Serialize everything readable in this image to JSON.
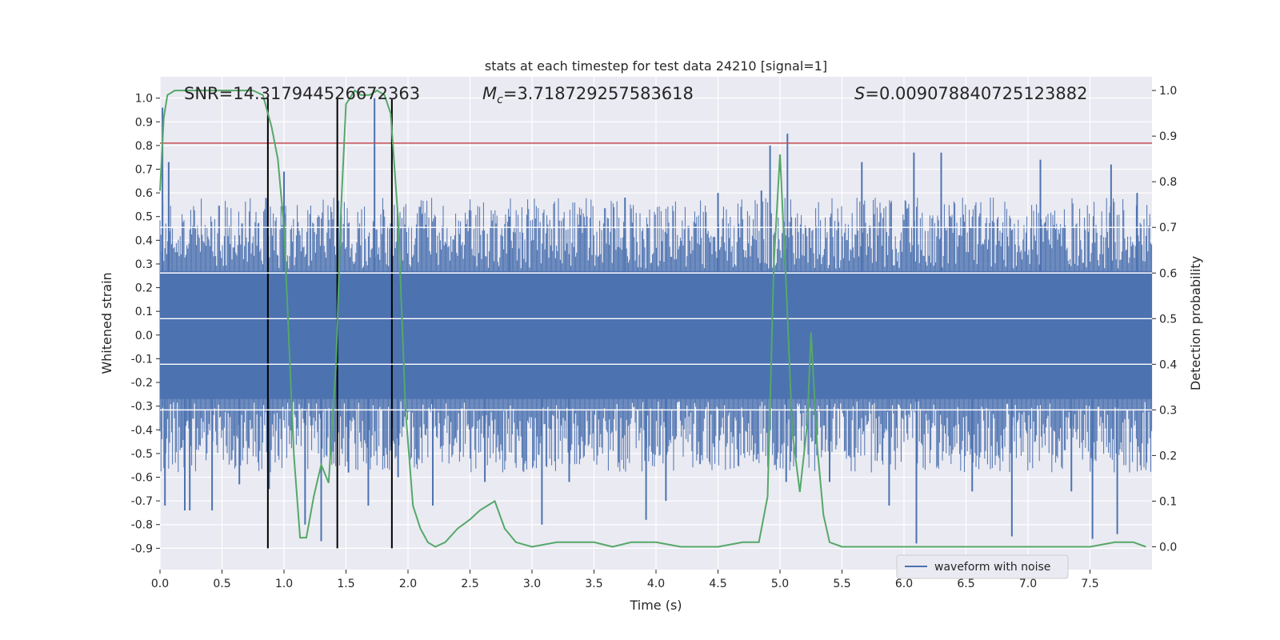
{
  "chart_data": {
    "type": "line",
    "title": "stats at each timestep for test data 24210 [signal=1]",
    "xlabel": "Time (s)",
    "ylabel_left": "Whitened strain",
    "ylabel_right": "Detection probability",
    "xlim": [
      0.0,
      8.0
    ],
    "ylim_left": [
      -0.99,
      1.09
    ],
    "ylim_right": [
      -0.05,
      1.03
    ],
    "x_ticks": [
      "0.0",
      "0.5",
      "1.0",
      "1.5",
      "2.0",
      "2.5",
      "3.0",
      "3.5",
      "4.0",
      "4.5",
      "5.0",
      "5.5",
      "6.0",
      "6.5",
      "7.0",
      "7.5"
    ],
    "y_left_ticks": [
      "1.0",
      "0.9",
      "0.8",
      "0.7",
      "0.6",
      "0.5",
      "0.4",
      "0.3",
      "0.2",
      "0.1",
      "0.0",
      "-0.1",
      "-0.2",
      "-0.3",
      "-0.4",
      "-0.5",
      "-0.6",
      "-0.7",
      "-0.8",
      "-0.9"
    ],
    "y_right_ticks": [
      "1.0",
      "0.9",
      "0.8",
      "0.7",
      "0.6",
      "0.5",
      "0.4",
      "0.3",
      "0.2",
      "0.1",
      "0.0"
    ],
    "grid": true,
    "legend": {
      "position": "lower-right",
      "entries": [
        "waveform with noise"
      ]
    },
    "annotations": {
      "snr": {
        "label": "SNR",
        "value": "14.317944526672363"
      },
      "mc": {
        "label": "M",
        "subscript": "c",
        "value": "3.718729257583618"
      },
      "s": {
        "label": "S",
        "value": "0.009078840725123882"
      }
    },
    "threshold": {
      "y": 0.81,
      "axis": "left"
    },
    "vertical_lines_x": [
      0.87,
      1.43,
      1.87
    ],
    "series": [
      {
        "name": "waveform with noise",
        "axis": "left",
        "band_core": [
          -0.27,
          0.27
        ],
        "spikes": [
          [
            0.02,
            0.96
          ],
          [
            0.04,
            -0.72
          ],
          [
            0.07,
            0.73
          ],
          [
            0.2,
            -0.74
          ],
          [
            0.24,
            -0.74
          ],
          [
            0.42,
            -0.74
          ],
          [
            0.64,
            -0.63
          ],
          [
            0.88,
            -0.65
          ],
          [
            1.0,
            0.69
          ],
          [
            1.17,
            -0.8
          ],
          [
            1.3,
            -0.87
          ],
          [
            1.52,
            -0.58
          ],
          [
            1.68,
            -0.72
          ],
          [
            1.73,
            1.0
          ],
          [
            1.92,
            -0.6
          ],
          [
            2.2,
            -0.72
          ],
          [
            2.62,
            -0.62
          ],
          [
            2.82,
            0.5
          ],
          [
            3.08,
            -0.8
          ],
          [
            3.3,
            -0.62
          ],
          [
            3.75,
            0.58
          ],
          [
            3.92,
            -0.78
          ],
          [
            4.08,
            -0.7
          ],
          [
            4.5,
            0.6
          ],
          [
            4.85,
            0.61
          ],
          [
            4.92,
            0.8
          ],
          [
            5.05,
            -0.62
          ],
          [
            5.06,
            0.85
          ],
          [
            5.4,
            -0.62
          ],
          [
            5.66,
            0.73
          ],
          [
            5.88,
            -0.72
          ],
          [
            6.08,
            0.77
          ],
          [
            6.1,
            -0.88
          ],
          [
            6.3,
            0.77
          ],
          [
            6.55,
            -0.66
          ],
          [
            6.87,
            -0.85
          ],
          [
            7.1,
            0.74
          ],
          [
            7.35,
            -0.66
          ],
          [
            7.52,
            -0.86
          ],
          [
            7.67,
            0.72
          ],
          [
            7.72,
            -0.84
          ],
          [
            7.88,
            0.6
          ]
        ]
      },
      {
        "name": "",
        "axis": "right",
        "x": [
          0.0,
          0.03,
          0.06,
          0.12,
          0.25,
          0.4,
          0.6,
          0.75,
          0.83,
          0.9,
          0.95,
          1.0,
          1.04,
          1.08,
          1.13,
          1.18,
          1.24,
          1.3,
          1.36,
          1.42,
          1.46,
          1.5,
          1.57,
          1.62,
          1.69,
          1.75,
          1.81,
          1.86,
          1.92,
          1.98,
          2.04,
          2.1,
          2.16,
          2.22,
          2.3,
          2.4,
          2.5,
          2.58,
          2.64,
          2.7,
          2.78,
          2.87,
          3.0,
          3.2,
          3.35,
          3.5,
          3.65,
          3.8,
          4.0,
          4.2,
          4.5,
          4.7,
          4.83,
          4.9,
          4.95,
          5.0,
          5.05,
          5.1,
          5.16,
          5.22,
          5.25,
          5.3,
          5.35,
          5.4,
          5.5,
          6.0,
          6.5,
          7.0,
          7.5,
          7.7,
          7.85,
          7.95
        ],
        "y": [
          0.78,
          0.94,
          0.99,
          1.0,
          1.0,
          1.0,
          1.0,
          1.0,
          0.99,
          0.92,
          0.85,
          0.7,
          0.45,
          0.2,
          0.02,
          0.02,
          0.11,
          0.18,
          0.14,
          0.4,
          0.74,
          0.97,
          1.0,
          0.99,
          0.99,
          1.0,
          0.99,
          0.95,
          0.72,
          0.3,
          0.09,
          0.04,
          0.01,
          0.0,
          0.01,
          0.04,
          0.06,
          0.08,
          0.09,
          0.1,
          0.04,
          0.01,
          0.0,
          0.01,
          0.01,
          0.01,
          0.0,
          0.01,
          0.01,
          0.0,
          0.0,
          0.01,
          0.01,
          0.11,
          0.62,
          0.86,
          0.57,
          0.25,
          0.12,
          0.27,
          0.47,
          0.22,
          0.07,
          0.01,
          0.0,
          0.0,
          0.0,
          0.0,
          0.0,
          0.01,
          0.01,
          0.0
        ],
        "color": "#55a868"
      }
    ]
  }
}
